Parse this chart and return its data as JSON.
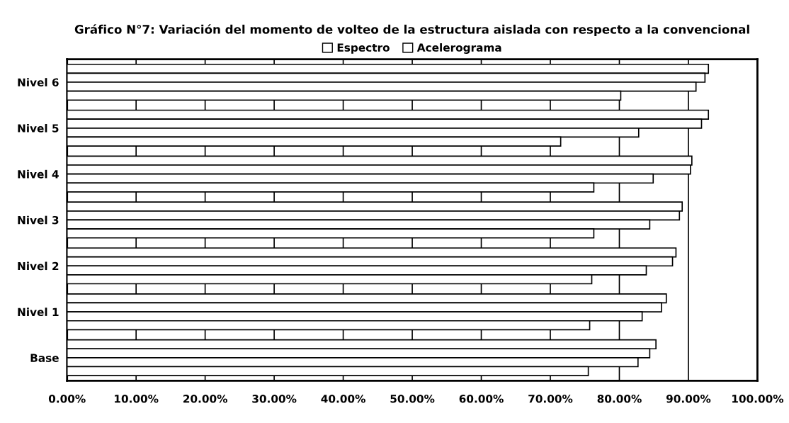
{
  "chart_data": {
    "type": "bar",
    "orientation": "horizontal",
    "title": "Gráfico N°7: Variación del momento de volteo de la estructura aislada con respecto a la convencional",
    "categories": [
      "Nivel 6",
      "Nivel 5",
      "Nivel 4",
      "Nivel 3",
      "Nivel 2",
      "Nivel 1",
      "Base"
    ],
    "series": [
      {
        "name": "Espectro",
        "color": "#ffffff",
        "values": [
          92.9,
          92.9,
          90.5,
          89.1,
          88.2,
          86.8,
          85.3
        ]
      },
      {
        "name": "Acelerograma",
        "color": "#ffffff",
        "values": [
          92.4,
          91.9,
          90.3,
          88.7,
          87.7,
          86.1,
          84.4
        ]
      },
      {
        "color": "#ffffff",
        "values": [
          91.1,
          82.8,
          84.9,
          84.4,
          83.9,
          83.3,
          82.7
        ]
      },
      {
        "color": "#ffffff",
        "values": [
          80.2,
          71.5,
          76.3,
          76.3,
          76.0,
          75.7,
          75.5
        ]
      }
    ],
    "xlim": [
      0,
      100
    ],
    "xticks": [
      {
        "value": 0,
        "label": "0.00%"
      },
      {
        "value": 10,
        "label": "10.00%"
      },
      {
        "value": 20,
        "label": "20.00%"
      },
      {
        "value": 30,
        "label": "30.00%"
      },
      {
        "value": 40,
        "label": "40.00%"
      },
      {
        "value": 50,
        "label": "50.00%"
      },
      {
        "value": 60,
        "label": "60.00%"
      },
      {
        "value": 70,
        "label": "70.00%"
      },
      {
        "value": 80,
        "label": "80.00%"
      },
      {
        "value": 90,
        "label": "90.00%"
      },
      {
        "value": 100,
        "label": "100.00%"
      }
    ],
    "grid": "x",
    "legend": "top"
  }
}
